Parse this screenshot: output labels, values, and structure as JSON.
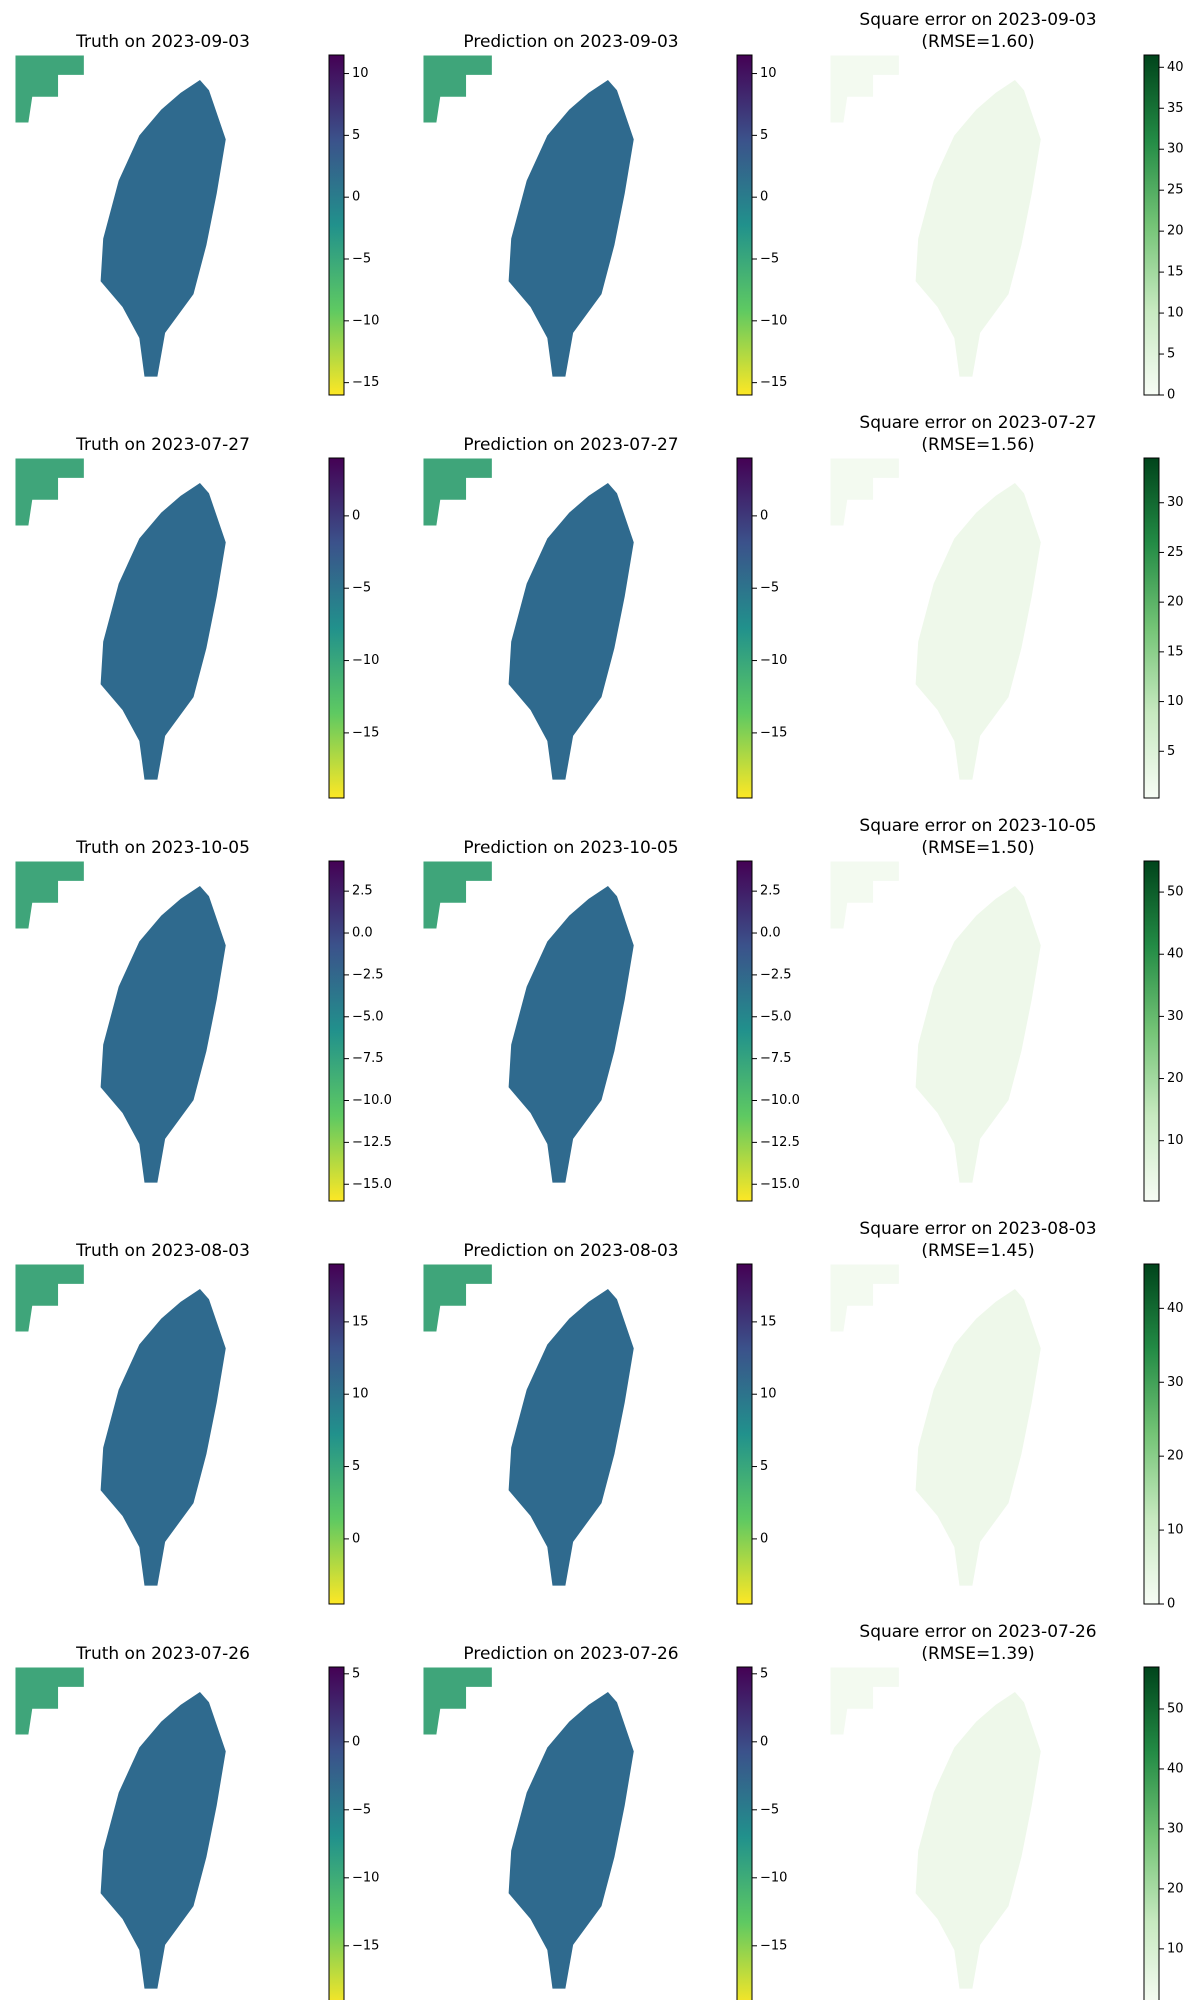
{
  "chart_data": [
    {
      "type": "heatmap",
      "title": "Truth on 2023-09-03",
      "colormap": "viridis_r",
      "ylim": [
        -16,
        11.5
      ],
      "yticks": [
        {
          "value": -15,
          "label": "−15"
        },
        {
          "value": -10,
          "label": "−10"
        },
        {
          "value": -5,
          "label": "−5"
        },
        0,
        5,
        10
      ]
    },
    {
      "type": "heatmap",
      "title": "Prediction on 2023-09-03",
      "colormap": "viridis_r",
      "ylim": [
        -16,
        11.5
      ],
      "yticks": [
        {
          "value": -15,
          "label": "−15"
        },
        {
          "value": -10,
          "label": "−10"
        },
        {
          "value": -5,
          "label": "−5"
        },
        0,
        5,
        10
      ]
    },
    {
      "type": "heatmap",
      "title": "Square error on 2023-09-03",
      "subtitle": "(RMSE=1.60)",
      "colormap": "Greens",
      "ylim": [
        0,
        41.5
      ],
      "yticks": [
        0,
        5,
        10,
        15,
        20,
        25,
        30,
        35,
        40
      ]
    },
    {
      "type": "heatmap",
      "title": "Truth on 2023-07-27",
      "colormap": "viridis_r",
      "ylim": [
        -19.5,
        4
      ],
      "yticks": [
        {
          "value": -15,
          "label": "−15"
        },
        {
          "value": -10,
          "label": "−10"
        },
        {
          "value": -5,
          "label": "−5"
        },
        0
      ]
    },
    {
      "type": "heatmap",
      "title": "Prediction on 2023-07-27",
      "colormap": "viridis_r",
      "ylim": [
        -19.5,
        4
      ],
      "yticks": [
        {
          "value": -15,
          "label": "−15"
        },
        {
          "value": -10,
          "label": "−10"
        },
        {
          "value": -5,
          "label": "−5"
        },
        0
      ]
    },
    {
      "type": "heatmap",
      "title": "Square error on 2023-07-27",
      "subtitle": "(RMSE=1.56)",
      "colormap": "Greens",
      "ylim": [
        0.3,
        34.5
      ],
      "yticks": [
        5,
        10,
        15,
        20,
        25,
        30
      ]
    },
    {
      "type": "heatmap",
      "title": "Truth on 2023-10-05",
      "colormap": "viridis_r",
      "ylim": [
        -16,
        4.3
      ],
      "yticks": [
        {
          "value": -15,
          "label": "−15.0"
        },
        {
          "value": -12.5,
          "label": "−12.5"
        },
        {
          "value": -10,
          "label": "−10.0"
        },
        {
          "value": -7.5,
          "label": "−7.5"
        },
        {
          "value": -5,
          "label": "−5.0"
        },
        {
          "value": -2.5,
          "label": "−2.5"
        },
        {
          "value": 0,
          "label": "0.0"
        },
        2.5
      ]
    },
    {
      "type": "heatmap",
      "title": "Prediction on 2023-10-05",
      "colormap": "viridis_r",
      "ylim": [
        -16,
        4.3
      ],
      "yticks": [
        {
          "value": -15,
          "label": "−15.0"
        },
        {
          "value": -12.5,
          "label": "−12.5"
        },
        {
          "value": -10,
          "label": "−10.0"
        },
        {
          "value": -7.5,
          "label": "−7.5"
        },
        {
          "value": -5,
          "label": "−5.0"
        },
        {
          "value": -2.5,
          "label": "−2.5"
        },
        {
          "value": 0,
          "label": "0.0"
        },
        2.5
      ]
    },
    {
      "type": "heatmap",
      "title": "Square error on 2023-10-05",
      "subtitle": "(RMSE=1.50)",
      "colormap": "Greens",
      "ylim": [
        0.3,
        55
      ],
      "yticks": [
        10,
        20,
        30,
        40,
        50
      ]
    },
    {
      "type": "heatmap",
      "title": "Truth on 2023-08-03",
      "colormap": "viridis_r",
      "ylim": [
        -4.5,
        19
      ],
      "yticks": [
        0,
        5,
        10,
        15
      ]
    },
    {
      "type": "heatmap",
      "title": "Prediction on 2023-08-03",
      "colormap": "viridis_r",
      "ylim": [
        -4.5,
        19
      ],
      "yticks": [
        0,
        5,
        10,
        15
      ]
    },
    {
      "type": "heatmap",
      "title": "Square error on 2023-08-03",
      "subtitle": "(RMSE=1.45)",
      "colormap": "Greens",
      "ylim": [
        0,
        46
      ],
      "yticks": [
        0,
        10,
        20,
        30,
        40
      ]
    },
    {
      "type": "heatmap",
      "title": "Truth on 2023-07-26",
      "colormap": "viridis_r",
      "ylim": [
        -19.5,
        5.5
      ],
      "yticks": [
        {
          "value": -15,
          "label": "−15"
        },
        {
          "value": -10,
          "label": "−10"
        },
        {
          "value": -5,
          "label": "−5"
        },
        0,
        5
      ]
    },
    {
      "type": "heatmap",
      "title": "Prediction on 2023-07-26",
      "colormap": "viridis_r",
      "ylim": [
        -19.5,
        5.5
      ],
      "yticks": [
        {
          "value": -15,
          "label": "−15"
        },
        {
          "value": -10,
          "label": "−10"
        },
        {
          "value": -5,
          "label": "−5"
        },
        0,
        5
      ]
    },
    {
      "type": "heatmap",
      "title": "Square error on 2023-07-26",
      "subtitle": "(RMSE=1.39)",
      "colormap": "Greens",
      "ylim": [
        0.3,
        57
      ],
      "yticks": [
        10,
        20,
        30,
        40,
        50
      ]
    }
  ]
}
